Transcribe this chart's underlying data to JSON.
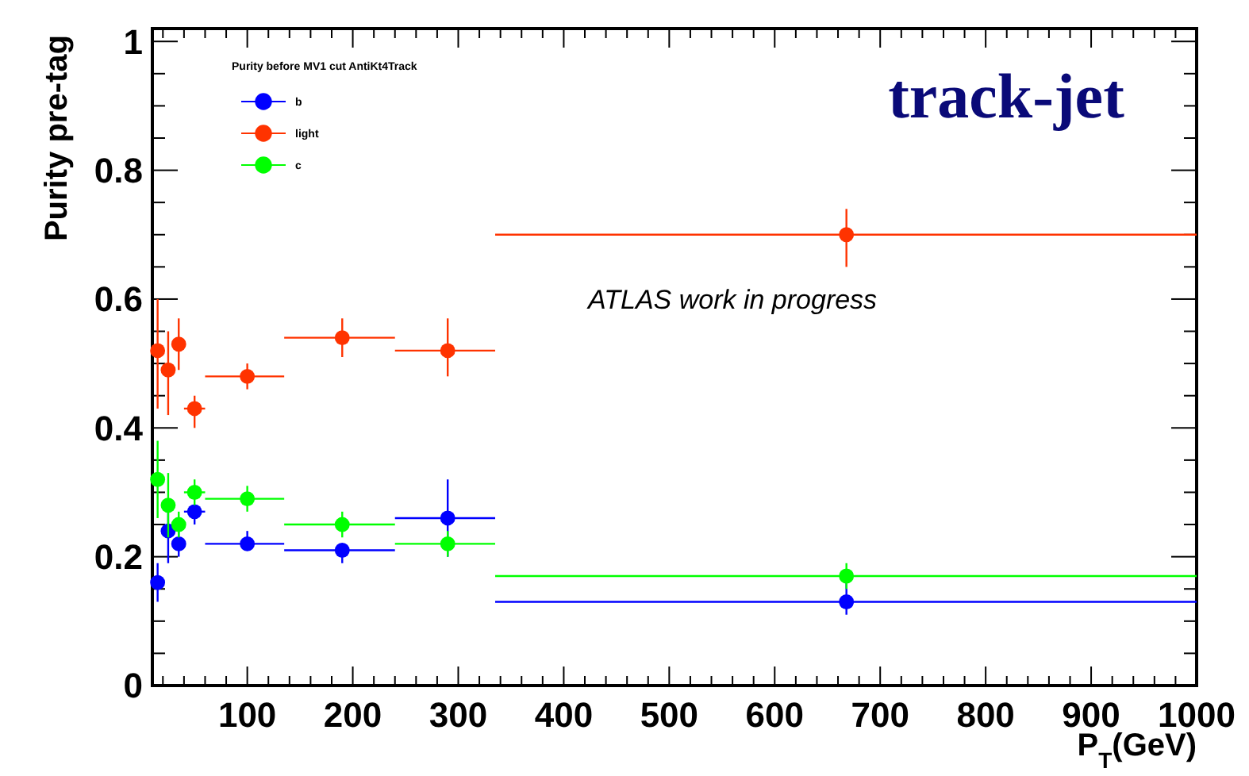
{
  "chart_data": {
    "type": "scatter",
    "title": "track-jet",
    "xlabel": "P$_{T}$(GeV)",
    "ylabel": "Purity pre-tag",
    "legend_title": "Purity before MV1 cut AntiKt4Track",
    "annotations": [
      "ATLAS work in progress"
    ],
    "x": [
      15,
      25,
      35,
      50,
      100,
      190,
      290,
      668
    ],
    "series": [
      {
        "name": "b",
        "color": "#0000ff",
        "values": [
          0.16,
          0.24,
          0.22,
          0.27,
          0.22,
          0.21,
          0.26,
          0.13
        ],
        "errors": [
          [
            0.13,
            0.19
          ],
          [
            0.19,
            0.27
          ],
          [
            0.2,
            0.24
          ],
          [
            0.25,
            0.27
          ],
          [
            0.21,
            0.24
          ],
          [
            0.19,
            0.22
          ],
          [
            0.2,
            0.32
          ],
          [
            0.11,
            0.16
          ]
        ],
        "xerrors": [
          [
            10,
            20
          ],
          [
            20,
            30
          ],
          [
            30,
            40
          ],
          [
            40,
            60
          ],
          [
            60,
            135
          ],
          [
            135,
            240
          ],
          [
            240,
            335
          ],
          [
            335,
            1000
          ]
        ]
      },
      {
        "name": "light",
        "color": "#ff3300",
        "values": [
          0.52,
          0.49,
          0.53,
          0.43,
          0.48,
          0.54,
          0.52,
          0.7
        ],
        "errors": [
          [
            0.43,
            0.6
          ],
          [
            0.42,
            0.55
          ],
          [
            0.49,
            0.57
          ],
          [
            0.4,
            0.45
          ],
          [
            0.46,
            0.5
          ],
          [
            0.51,
            0.57
          ],
          [
            0.48,
            0.57
          ],
          [
            0.65,
            0.74
          ]
        ],
        "xerrors": [
          [
            10,
            20
          ],
          [
            20,
            30
          ],
          [
            30,
            40
          ],
          [
            40,
            60
          ],
          [
            60,
            135
          ],
          [
            135,
            240
          ],
          [
            240,
            335
          ],
          [
            335,
            1000
          ]
        ]
      },
      {
        "name": "c",
        "color": "#00ff00",
        "values": [
          0.32,
          0.28,
          0.25,
          0.3,
          0.29,
          0.25,
          0.22,
          0.17
        ],
        "errors": [
          [
            0.26,
            0.38
          ],
          [
            0.23,
            0.33
          ],
          [
            0.23,
            0.27
          ],
          [
            0.28,
            0.32
          ],
          [
            0.27,
            0.31
          ],
          [
            0.23,
            0.27
          ],
          [
            0.2,
            0.24
          ],
          [
            0.15,
            0.19
          ]
        ],
        "xerrors": [
          [
            10,
            20
          ],
          [
            20,
            30
          ],
          [
            30,
            40
          ],
          [
            40,
            60
          ],
          [
            60,
            135
          ],
          [
            135,
            240
          ],
          [
            240,
            335
          ],
          [
            335,
            1000
          ]
        ]
      }
    ],
    "xlim": [
      10,
      1000
    ],
    "ylim": [
      0,
      1.02
    ],
    "xticks": [
      {
        "value": 20,
        "label": null
      },
      {
        "value": 40,
        "label": null
      },
      {
        "value": 60,
        "label": null
      },
      {
        "value": 80,
        "label": null
      },
      100,
      {
        "value": 120,
        "label": null
      },
      {
        "value": 140,
        "label": null
      },
      {
        "value": 160,
        "label": null
      },
      {
        "value": 180,
        "label": null
      },
      200,
      {
        "value": 220,
        "label": null
      },
      {
        "value": 240,
        "label": null
      },
      {
        "value": 260,
        "label": null
      },
      {
        "value": 280,
        "label": null
      },
      300,
      {
        "value": 320,
        "label": null
      },
      {
        "value": 340,
        "label": null
      },
      {
        "value": 360,
        "label": null
      },
      {
        "value": 380,
        "label": null
      },
      400,
      {
        "value": 420,
        "label": null
      },
      {
        "value": 440,
        "label": null
      },
      {
        "value": 460,
        "label": null
      },
      {
        "value": 480,
        "label": null
      },
      500,
      {
        "value": 520,
        "label": null
      },
      {
        "value": 540,
        "label": null
      },
      {
        "value": 560,
        "label": null
      },
      {
        "value": 580,
        "label": null
      },
      600,
      {
        "value": 620,
        "label": null
      },
      {
        "value": 640,
        "label": null
      },
      {
        "value": 660,
        "label": null
      },
      {
        "value": 680,
        "label": null
      },
      700,
      {
        "value": 720,
        "label": null
      },
      {
        "value": 740,
        "label": null
      },
      {
        "value": 760,
        "label": null
      },
      {
        "value": 780,
        "label": null
      },
      800,
      {
        "value": 820,
        "label": null
      },
      {
        "value": 840,
        "label": null
      },
      {
        "value": 860,
        "label": null
      },
      {
        "value": 880,
        "label": null
      },
      900,
      {
        "value": 920,
        "label": null
      },
      {
        "value": 940,
        "label": null
      },
      {
        "value": 960,
        "label": null
      },
      {
        "value": 980,
        "label": null
      },
      1000
    ],
    "yticks": [
      0,
      {
        "value": 0.05,
        "label": null
      },
      {
        "value": 0.1,
        "label": null
      },
      {
        "value": 0.15,
        "label": null
      },
      0.2,
      {
        "value": 0.25,
        "label": null
      },
      {
        "value": 0.3,
        "label": null
      },
      {
        "value": 0.35,
        "label": null
      },
      0.4,
      {
        "value": 0.45,
        "label": null
      },
      {
        "value": 0.5,
        "label": null
      },
      {
        "value": 0.55,
        "label": null
      },
      0.6,
      {
        "value": 0.65,
        "label": null
      },
      {
        "value": 0.7,
        "label": null
      },
      {
        "value": 0.75,
        "label": null
      },
      0.8,
      {
        "value": 0.85,
        "label": null
      },
      {
        "value": 0.9,
        "label": null
      },
      {
        "value": 0.95,
        "label": null
      },
      1
    ],
    "legend": "top left",
    "marker": "circle",
    "grid": false
  }
}
